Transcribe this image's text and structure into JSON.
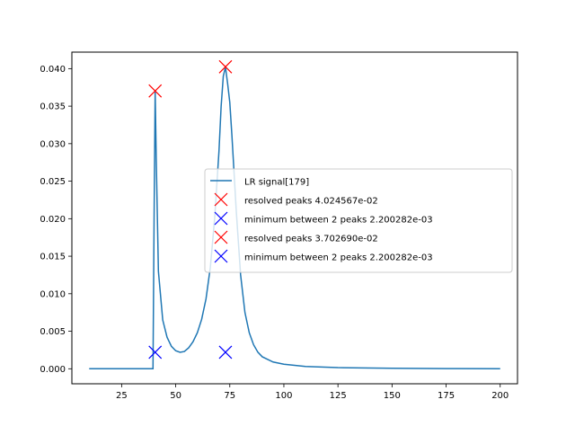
{
  "chart_data": {
    "type": "line",
    "title": "",
    "xlabel": "",
    "ylabel": "",
    "xlim": [
      2,
      208
    ],
    "ylim": [
      -0.002,
      0.0422
    ],
    "x_ticks": [
      25,
      50,
      75,
      100,
      125,
      150,
      175,
      200
    ],
    "x_tick_labels": [
      "25",
      "50",
      "75",
      "100",
      "125",
      "150",
      "175",
      "200"
    ],
    "y_ticks": [
      0.0,
      0.005,
      0.01,
      0.015,
      0.02,
      0.025,
      0.03,
      0.035,
      0.04
    ],
    "y_tick_labels": [
      "0.000",
      "0.005",
      "0.010",
      "0.015",
      "0.020",
      "0.025",
      "0.030",
      "0.035",
      "0.040"
    ],
    "grid": false,
    "legend_position": "center-right",
    "series": [
      {
        "name": "LR signal[179]",
        "kind": "line",
        "color": "#1f77b4",
        "x": [
          10,
          20,
          30,
          38,
          39.5,
          40,
          40.5,
          41,
          42,
          44,
          46,
          48,
          50,
          52,
          54,
          56,
          58,
          60,
          62,
          64,
          66,
          68,
          70,
          71,
          72,
          73,
          74,
          75,
          76,
          78,
          80,
          82,
          84,
          86,
          88,
          90,
          95,
          100,
          110,
          125,
          150,
          175,
          200
        ],
        "y": [
          0.0,
          0.0,
          0.0,
          0.0,
          0.0,
          0.02,
          0.037,
          0.028,
          0.013,
          0.0065,
          0.0042,
          0.003,
          0.0024,
          0.0022,
          0.0023,
          0.0028,
          0.0036,
          0.0048,
          0.0066,
          0.0093,
          0.0135,
          0.02,
          0.029,
          0.035,
          0.039,
          0.0402,
          0.038,
          0.0355,
          0.031,
          0.021,
          0.0125,
          0.0075,
          0.0048,
          0.0032,
          0.0022,
          0.0016,
          0.0009,
          0.0006,
          0.0003,
          0.00015,
          6e-05,
          2e-05,
          0.0
        ]
      },
      {
        "name": "resolved peaks 4.024567e-02",
        "kind": "marker",
        "color": "#ff0000",
        "x": [
          73
        ],
        "y": [
          0.04024567
        ]
      },
      {
        "name": "minimum between 2 peaks 2.200282e-03",
        "kind": "marker",
        "color": "#0000ff",
        "x": [
          73
        ],
        "y": [
          0.002200282
        ]
      },
      {
        "name": "resolved peaks 3.702690e-02",
        "kind": "marker",
        "color": "#ff0000",
        "x": [
          40.5
        ],
        "y": [
          0.0370269
        ]
      },
      {
        "name": "minimum between 2 peaks 2.200282e-03",
        "kind": "marker",
        "color": "#0000ff",
        "x": [
          40.5
        ],
        "y": [
          0.002200282
        ]
      }
    ]
  }
}
